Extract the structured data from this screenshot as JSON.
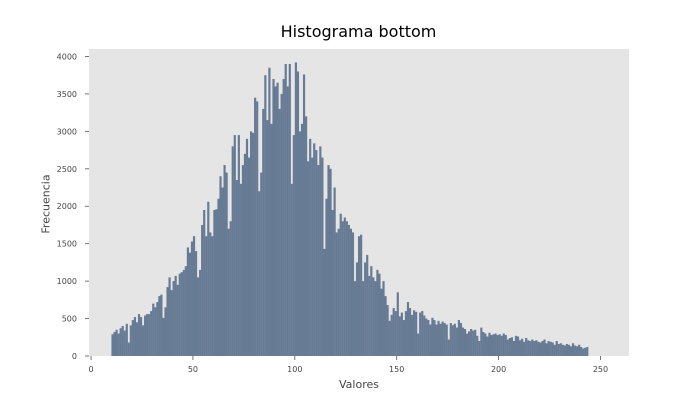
{
  "chart_data": {
    "type": "bar",
    "title": "Histograma bottom",
    "xlabel": "Valores",
    "ylabel": "Frecuencia",
    "xlim": [
      -1,
      264
    ],
    "ylim": [
      0,
      4100
    ],
    "xticks": [
      0,
      50,
      100,
      150,
      200,
      250
    ],
    "yticks": [
      0,
      500,
      1000,
      1500,
      2000,
      2500,
      3000,
      3500,
      4000
    ],
    "bar_color": "#677b94",
    "plot_background": "#e5e5e5",
    "grid": false,
    "bin_start": 10,
    "values": [
      290,
      320,
      350,
      300,
      370,
      400,
      340,
      430,
      180,
      410,
      480,
      520,
      450,
      560,
      520,
      410,
      540,
      560,
      560,
      600,
      700,
      650,
      720,
      800,
      820,
      510,
      650,
      920,
      1050,
      880,
      1000,
      1070,
      950,
      1100,
      1120,
      1150,
      1200,
      1450,
      1380,
      1530,
      1600,
      1400,
      1050,
      1150,
      1750,
      1950,
      1600,
      2060,
      1650,
      1600,
      1950,
      1960,
      2100,
      2400,
      2250,
      2550,
      2450,
      1700,
      1800,
      2800,
      2950,
      2350,
      2950,
      2300,
      2550,
      2700,
      2900,
      2650,
      3000,
      2980,
      3450,
      3400,
      2200,
      2450,
      3300,
      3750,
      3150,
      3850,
      3100,
      3700,
      3600,
      3650,
      3300,
      3500,
      3700,
      3900,
      3600,
      3900,
      2300,
      2950,
      3920,
      3800,
      3000,
      3100,
      3760,
      3200,
      2600,
      2900,
      2650,
      2840,
      2750,
      2550,
      2800,
      2650,
      1430,
      2100,
      2550,
      2500,
      1950,
      2250,
      1650,
      1700,
      1900,
      1800,
      1850,
      1800,
      1750,
      1700,
      1650,
      1000,
      1250,
      1600,
      1620,
      1000,
      1250,
      1350,
      1070,
      1200,
      1050,
      1000,
      1150,
      1100,
      900,
      1000,
      800,
      680,
      470,
      550,
      640,
      600,
      850,
      530,
      580,
      480,
      600,
      720,
      640,
      550,
      610,
      590,
      300,
      580,
      600,
      540,
      500,
      480,
      420,
      510,
      480,
      420,
      470,
      430,
      460,
      440,
      420,
      220,
      440,
      410,
      430,
      380,
      480,
      440,
      380,
      360,
      300,
      330,
      360,
      340,
      350,
      270,
      200,
      380,
      320,
      300,
      260,
      310,
      280,
      290,
      300,
      280,
      290,
      270,
      300,
      280,
      220,
      240,
      250,
      200,
      270,
      260,
      210,
      230,
      190,
      240,
      210,
      200,
      220,
      200,
      210,
      190,
      180,
      200,
      220,
      170,
      200,
      190,
      180,
      150,
      200,
      160,
      170,
      150,
      140,
      160,
      150,
      130,
      170,
      140,
      130,
      150,
      120,
      100,
      110,
      120
    ]
  }
}
